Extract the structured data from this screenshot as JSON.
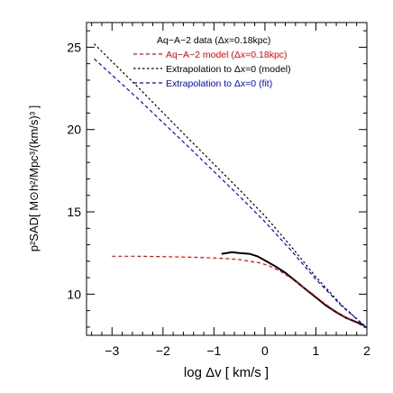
{
  "chart_data": {
    "type": "line",
    "title": "",
    "xlabel": "log Δv [ km/s ]",
    "ylabel": "p²SAD[ M⊙h²/Mpc³/(km/s)³ ]",
    "xlim": [
      -3.5,
      2.0
    ],
    "ylim": [
      7.5,
      26.5
    ],
    "x_ticks": [
      -3,
      -2,
      -1,
      0,
      1,
      2
    ],
    "y_ticks": [
      10,
      15,
      20,
      25
    ],
    "x_tick_labels": [
      "−3",
      "−2",
      "−1",
      "0",
      "1",
      "2"
    ],
    "y_tick_labels": [
      "10",
      "15",
      "20",
      "25"
    ],
    "grid": false,
    "legend_position": "top-right",
    "series": [
      {
        "name": "Aq−A−2 data (Δx=0.18kpc)",
        "style": "solid",
        "color": "#000000",
        "points": [
          [
            -0.85,
            12.45
          ],
          [
            -0.75,
            12.5
          ],
          [
            -0.65,
            12.55
          ],
          [
            -0.5,
            12.5
          ],
          [
            -0.3,
            12.45
          ],
          [
            -0.15,
            12.3
          ],
          [
            0.0,
            12.05
          ],
          [
            0.2,
            11.7
          ],
          [
            0.4,
            11.3
          ],
          [
            0.6,
            10.8
          ],
          [
            0.8,
            10.3
          ],
          [
            1.0,
            9.8
          ],
          [
            1.2,
            9.3
          ],
          [
            1.4,
            8.9
          ],
          [
            1.6,
            8.55
          ],
          [
            1.8,
            8.3
          ],
          [
            1.95,
            8.1
          ]
        ]
      },
      {
        "name": "Aq−A−2 model (Δx=0.18kpc)",
        "style": "dashed",
        "color": "#ff0000",
        "points": [
          [
            -3.0,
            12.3
          ],
          [
            -2.5,
            12.3
          ],
          [
            -2.0,
            12.28
          ],
          [
            -1.5,
            12.25
          ],
          [
            -1.0,
            12.2
          ],
          [
            -0.7,
            12.15
          ],
          [
            -0.5,
            12.1
          ],
          [
            -0.3,
            12.0
          ],
          [
            -0.1,
            11.9
          ],
          [
            0.1,
            11.7
          ],
          [
            0.3,
            11.4
          ],
          [
            0.5,
            11.0
          ],
          [
            0.7,
            10.55
          ],
          [
            0.9,
            10.1
          ],
          [
            1.1,
            9.6
          ],
          [
            1.3,
            9.15
          ],
          [
            1.5,
            8.75
          ],
          [
            1.7,
            8.4
          ],
          [
            1.9,
            8.1
          ],
          [
            2.0,
            7.95
          ]
        ]
      },
      {
        "name": "Extrapolation to Δx=0 (model)",
        "style": "dashed",
        "color": "#000000",
        "points": [
          [
            -3.35,
            25.2
          ],
          [
            -2.5,
            22.6
          ],
          [
            -1.5,
            19.45
          ],
          [
            -0.5,
            16.35
          ],
          [
            0.0,
            14.75
          ],
          [
            0.5,
            12.95
          ],
          [
            1.0,
            11.05
          ],
          [
            1.5,
            9.35
          ],
          [
            2.0,
            7.95
          ]
        ]
      },
      {
        "name": "Extrapolation to Δx=0 (fit)",
        "style": "dashed",
        "color": "#0000ff",
        "points": [
          [
            -3.35,
            24.3
          ],
          [
            -2.5,
            21.9
          ],
          [
            -1.5,
            18.95
          ],
          [
            -0.5,
            15.95
          ],
          [
            0.0,
            14.4
          ],
          [
            0.5,
            12.7
          ],
          [
            1.0,
            10.9
          ],
          [
            1.5,
            9.3
          ],
          [
            2.0,
            7.95
          ]
        ]
      }
    ]
  }
}
